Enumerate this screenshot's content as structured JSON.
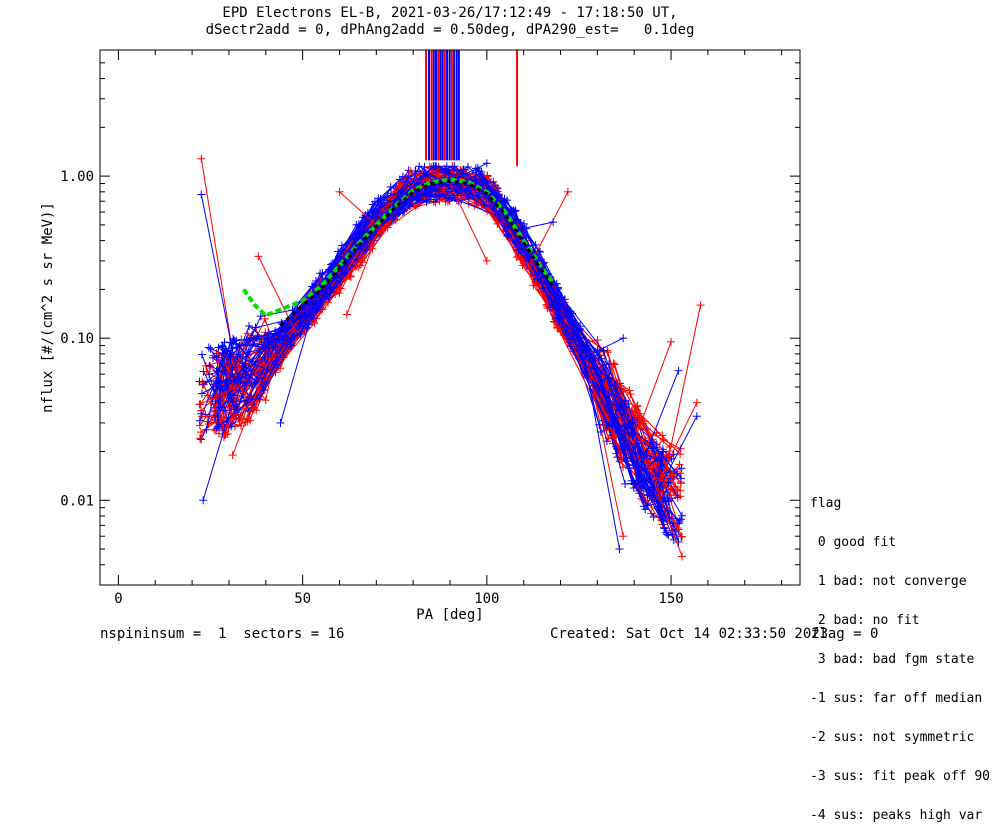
{
  "title_line1": "EPD Electrons EL-B, 2021-03-26/17:12:49 - 17:18:50 UT,",
  "title_line2": "dSectr2add = 0, dPhAng2add = 0.50deg, dPA290_est=   0.1deg",
  "footer": {
    "left": "nspininsum =  1  sectors = 16",
    "center": "Created: Sat Oct 14 02:33:50 2023",
    "right": "flag = 0"
  },
  "legend": {
    "title": "flag",
    "items": [
      " 0 good fit",
      " 1 bad: not converge",
      " 2 bad: no fit",
      " 3 bad: bad fgm state",
      "-1 sus: far off median",
      "-2 sus: not symmetric",
      "-3 sus: fit peak off 90",
      "-4 sus: peaks high var"
    ]
  },
  "colors": {
    "red": "#ff0000",
    "blue": "#0000ff",
    "fit_green": "#00e000",
    "fit_black": "#000000",
    "axes": "#000000"
  },
  "chart_data": {
    "type": "line",
    "xlabel": "PA [deg]",
    "ylabel": "nflux [#/(cm^2 s sr MeV)]",
    "xlim": [
      -5,
      185
    ],
    "ylim": [
      0.003,
      6
    ],
    "yscale": "log",
    "xticks": [
      0,
      50,
      100,
      150
    ],
    "yticks": [
      0.01,
      0.1,
      1.0
    ],
    "ytick_labels": [
      "0.01",
      "0.10",
      "1.00"
    ],
    "series": [
      {
        "color": "red",
        "profile_pa": [
          23,
          32,
          45,
          60,
          70,
          80,
          90,
          100,
          110,
          120,
          128,
          137,
          145,
          152
        ],
        "profile_flux": [
          0.04,
          0.05,
          0.09,
          0.25,
          0.5,
          0.85,
          0.9,
          0.8,
          0.35,
          0.14,
          0.07,
          0.03,
          0.015,
          0.011
        ],
        "outliers": [
          [
            22.5,
            1.28
          ],
          [
            38,
            0.32
          ],
          [
            60,
            0.8
          ],
          [
            122,
            0.8
          ],
          [
            158,
            0.16
          ],
          [
            150,
            0.095
          ],
          [
            157,
            0.04
          ],
          [
            100,
            0.3
          ],
          [
            62,
            0.14
          ],
          [
            22,
            0.039
          ],
          [
            31,
            0.019
          ],
          [
            137,
            0.006
          ],
          [
            153,
            0.0045
          ]
        ]
      },
      {
        "color": "blue",
        "profile_pa": [
          23,
          32,
          45,
          60,
          70,
          80,
          90,
          100,
          110,
          120,
          128,
          137,
          145,
          152
        ],
        "profile_flux": [
          0.045,
          0.055,
          0.1,
          0.28,
          0.55,
          0.9,
          0.92,
          0.85,
          0.4,
          0.15,
          0.07,
          0.025,
          0.013,
          0.01
        ],
        "outliers": [
          [
            22.5,
            0.77
          ],
          [
            23,
            0.01
          ],
          [
            100,
            1.2
          ],
          [
            118,
            0.52
          ],
          [
            137,
            0.1
          ],
          [
            152,
            0.063
          ],
          [
            157,
            0.033
          ],
          [
            44,
            0.03
          ],
          [
            136,
            0.005
          ],
          [
            22,
            0.054
          ]
        ]
      }
    ],
    "fit_green": {
      "pa": [
        34,
        37,
        40,
        44,
        50,
        55,
        60,
        65,
        70,
        75,
        80,
        85,
        90,
        95,
        100,
        105,
        110,
        115,
        118
      ],
      "flux": [
        0.2,
        0.16,
        0.138,
        0.15,
        0.17,
        0.21,
        0.28,
        0.38,
        0.5,
        0.65,
        0.82,
        0.92,
        0.95,
        0.92,
        0.8,
        0.6,
        0.4,
        0.27,
        0.22
      ]
    },
    "fit_black": {
      "pa": [
        44,
        50,
        55,
        60,
        65,
        70,
        75,
        80,
        85,
        90,
        95,
        100,
        105,
        110,
        115,
        118
      ],
      "flux": [
        0.12,
        0.16,
        0.2,
        0.27,
        0.37,
        0.49,
        0.64,
        0.8,
        0.9,
        0.93,
        0.9,
        0.78,
        0.58,
        0.39,
        0.26,
        0.21
      ]
    },
    "spikes": [
      {
        "pa": 83.5,
        "color": "red"
      },
      {
        "pa": 84.3,
        "color": "blue"
      },
      {
        "pa": 85.0,
        "color": "red"
      },
      {
        "pa": 85.6,
        "color": "blue"
      },
      {
        "pa": 86.2,
        "color": "blue"
      },
      {
        "pa": 86.8,
        "color": "red"
      },
      {
        "pa": 87.4,
        "color": "blue"
      },
      {
        "pa": 88.0,
        "color": "blue"
      },
      {
        "pa": 88.6,
        "color": "red"
      },
      {
        "pa": 89.2,
        "color": "blue"
      },
      {
        "pa": 89.9,
        "color": "blue"
      },
      {
        "pa": 90.5,
        "color": "red"
      },
      {
        "pa": 91.1,
        "color": "blue"
      },
      {
        "pa": 91.8,
        "color": "blue"
      },
      {
        "pa": 92.4,
        "color": "blue"
      },
      {
        "pa": 108.2,
        "color": "red"
      }
    ]
  }
}
